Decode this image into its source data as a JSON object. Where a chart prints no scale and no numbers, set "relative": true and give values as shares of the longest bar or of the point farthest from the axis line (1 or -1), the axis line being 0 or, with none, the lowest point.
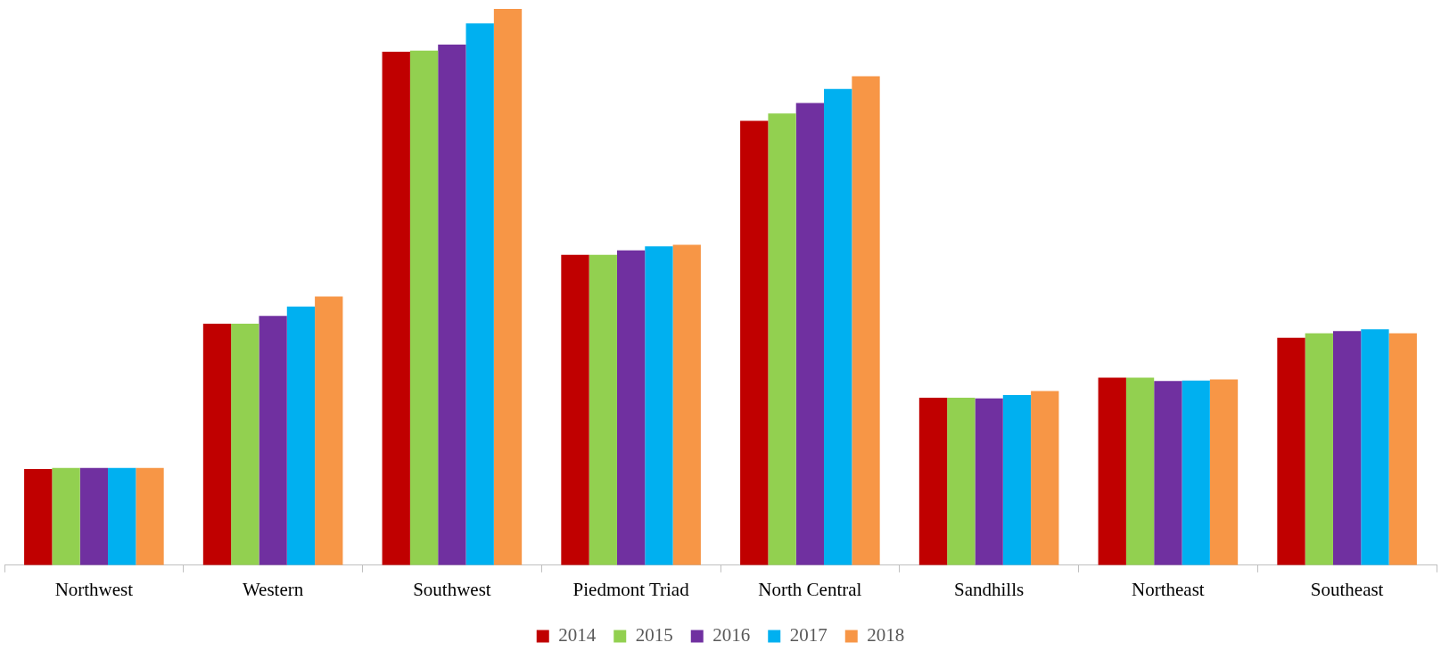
{
  "chart_data": {
    "type": "bar",
    "relative": true,
    "categories": [
      "Northwest",
      "Western",
      "Southwest",
      "Piedmont Triad",
      "North Central",
      "Sandhills",
      "Northeast",
      "Southeast"
    ],
    "series": [
      {
        "name": "2014",
        "color": "#c00000",
        "values": [
          0.173,
          0.434,
          0.923,
          0.558,
          0.799,
          0.301,
          0.337,
          0.409
        ]
      },
      {
        "name": "2015",
        "color": "#92d050",
        "values": [
          0.175,
          0.434,
          0.925,
          0.558,
          0.812,
          0.301,
          0.337,
          0.417
        ]
      },
      {
        "name": "2016",
        "color": "#7030a0",
        "values": [
          0.175,
          0.448,
          0.936,
          0.566,
          0.831,
          0.3,
          0.331,
          0.421
        ]
      },
      {
        "name": "2017",
        "color": "#00b0f0",
        "values": [
          0.175,
          0.465,
          0.974,
          0.573,
          0.856,
          0.306,
          0.332,
          0.424
        ]
      },
      {
        "name": "2018",
        "color": "#f79646",
        "values": [
          0.175,
          0.483,
          1,
          0.576,
          0.879,
          0.313,
          0.334,
          0.417
        ]
      }
    ],
    "legend": "bottom",
    "grid": false
  }
}
